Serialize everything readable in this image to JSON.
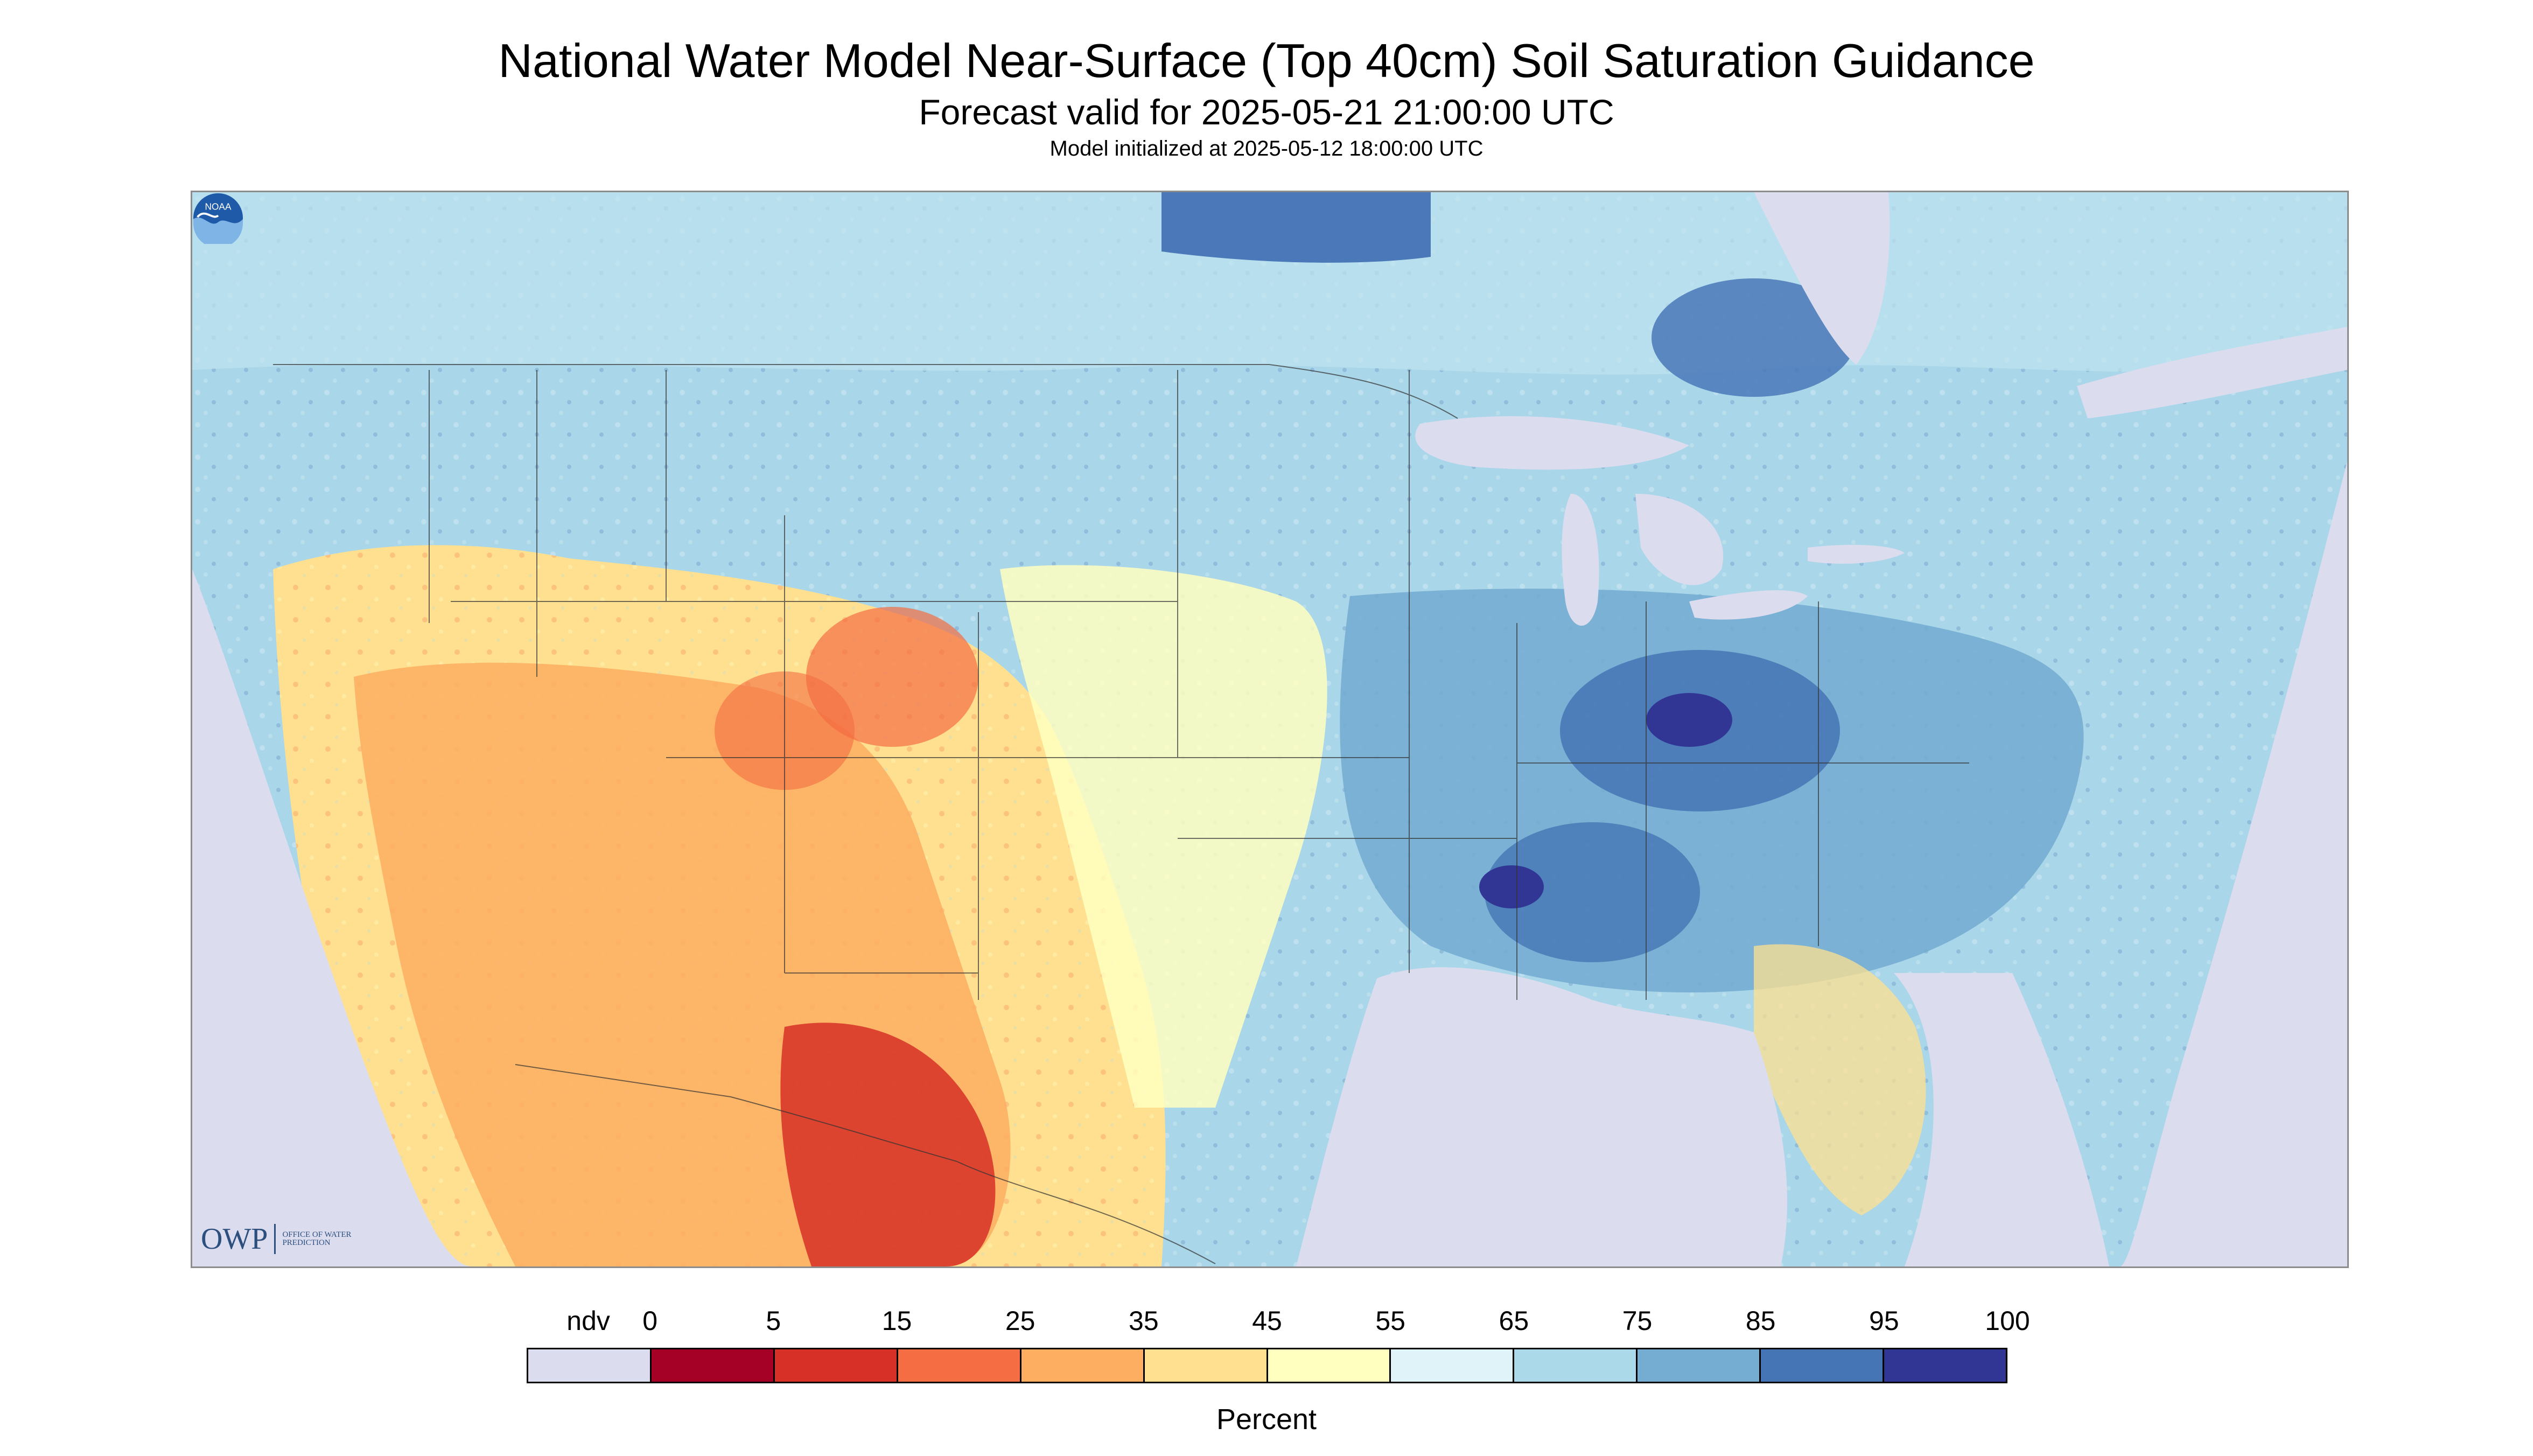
{
  "header": {
    "title": "National Water Model Near-Surface (Top 40cm) Soil Saturation Guidance",
    "subtitle": "Forecast valid for 2025-05-21 21:00:00 UTC",
    "init_line": "Model initialized at 2025-05-12 18:00:00 UTC"
  },
  "map": {
    "region": "Contiguous United States",
    "fill_color_ndv": "#dcdcef",
    "dominant_pattern": {
      "west_and_southwest": "dry (5-45 percent)",
      "central_plains_and_east": "wet (65-100 percent)",
      "great_lakes_and_oceans": "ndv"
    }
  },
  "logos": {
    "owp": {
      "mark": "OWP",
      "subtitle": "Office of Water Prediction"
    },
    "noaa": {
      "mark": "NOAA"
    }
  },
  "legend": {
    "labels": [
      "ndv",
      "0",
      "5",
      "15",
      "25",
      "35",
      "45",
      "55",
      "65",
      "75",
      "85",
      "95",
      "100"
    ],
    "colors": [
      "#dcdcef",
      "#a50026",
      "#d73027",
      "#f46d43",
      "#fdae61",
      "#fee090",
      "#ffffbf",
      "#e0f3f8",
      "#abd9e9",
      "#74add1",
      "#4575b4",
      "#313695"
    ],
    "unit": "Percent"
  }
}
